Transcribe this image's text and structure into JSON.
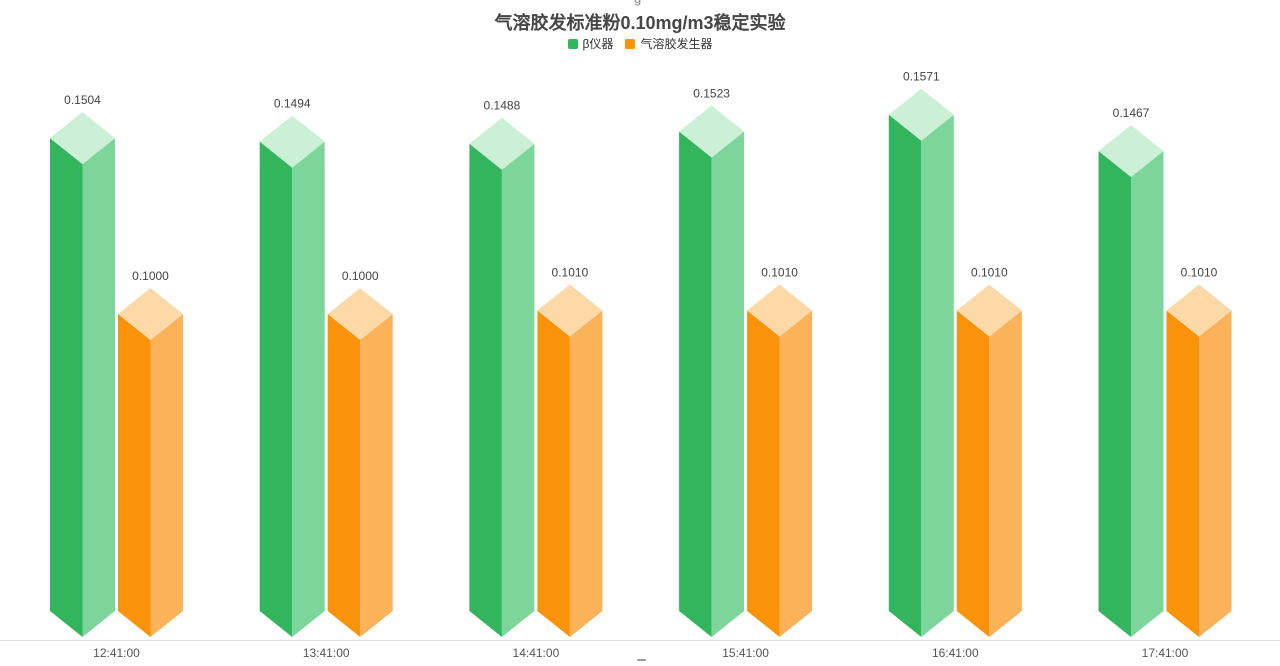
{
  "title": "气溶胶发标准粉0.10mg/m3稳定实验",
  "legend": {
    "items": [
      {
        "label": "β仪器",
        "color": "#33B55E"
      },
      {
        "label": "气溶胶发生器",
        "color": "#FA920A"
      }
    ]
  },
  "fragments": {
    "top_glyph": "g"
  },
  "colors": {
    "title_text": "#464646",
    "legend_text": "#333333",
    "value_label_text": "#444444",
    "axis_label_text": "#555555",
    "axis_line": "#E0E0E0",
    "background": "#FFFFFF"
  },
  "chart_data": {
    "type": "bar",
    "title": "气溶胶发标准粉0.10mg/m3稳定实验",
    "xlabel": "",
    "ylabel": "",
    "categories": [
      "12:41:00",
      "13:41:00",
      "14:41:00",
      "15:41:00",
      "16:41:00",
      "17:41:00"
    ],
    "series": [
      {
        "name": "β仪器",
        "values": [
          0.1504,
          0.1494,
          0.1488,
          0.1523,
          0.1571,
          0.1467
        ],
        "value_labels": [
          "0.1504",
          "0.1494",
          "0.1488",
          "0.1523",
          "0.1571",
          "0.1467"
        ],
        "colors": {
          "left": "#33B55E",
          "right": "#7ED59B",
          "top": "#CBF0D5"
        }
      },
      {
        "name": "气溶胶发生器",
        "values": [
          0.1,
          0.1,
          0.101,
          0.101,
          0.101,
          0.101
        ],
        "value_labels": [
          "0.1000",
          "0.1000",
          "0.1010",
          "0.1010",
          "0.1010",
          "0.1010"
        ],
        "colors": {
          "left": "#FA920A",
          "right": "#FBB259",
          "top": "#FDD9A8"
        }
      }
    ],
    "value_label_decimals": 4,
    "ylim": [
      0,
      0.17
    ],
    "grid": false,
    "legend_position": "top",
    "bar_style": "3d-prism",
    "data_labels_shown": true
  }
}
